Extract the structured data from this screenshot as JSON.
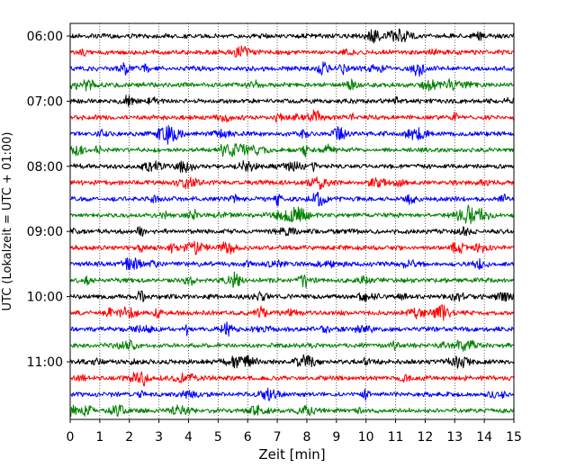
{
  "chart_data": {
    "type": "line",
    "subtype": "helicorder",
    "xlabel": "Zeit  [min]",
    "ylabel": "UTC (Lokalzeit = UTC + 01:00)",
    "xlim": [
      0,
      15
    ],
    "x_ticks": [
      "0",
      "1",
      "2",
      "3",
      "4",
      "5",
      "6",
      "7",
      "8",
      "9",
      "10",
      "11",
      "12",
      "13",
      "14",
      "15"
    ],
    "y_tick_labels": [
      "06:00",
      "07:00",
      "08:00",
      "09:00",
      "10:00",
      "11:00"
    ],
    "x_grid": "dotted",
    "trace_start_times": [
      "06:00",
      "06:15",
      "06:30",
      "06:45",
      "07:00",
      "07:15",
      "07:30",
      "07:45",
      "08:00",
      "08:15",
      "08:30",
      "08:45",
      "09:00",
      "09:15",
      "09:30",
      "09:45",
      "10:00",
      "10:15",
      "10:30",
      "10:45",
      "11:00",
      "11:15",
      "11:30",
      "11:45"
    ],
    "trace_color_cycle": [
      "#000000",
      "#ff0000",
      "#0000ff",
      "#008000"
    ]
  }
}
